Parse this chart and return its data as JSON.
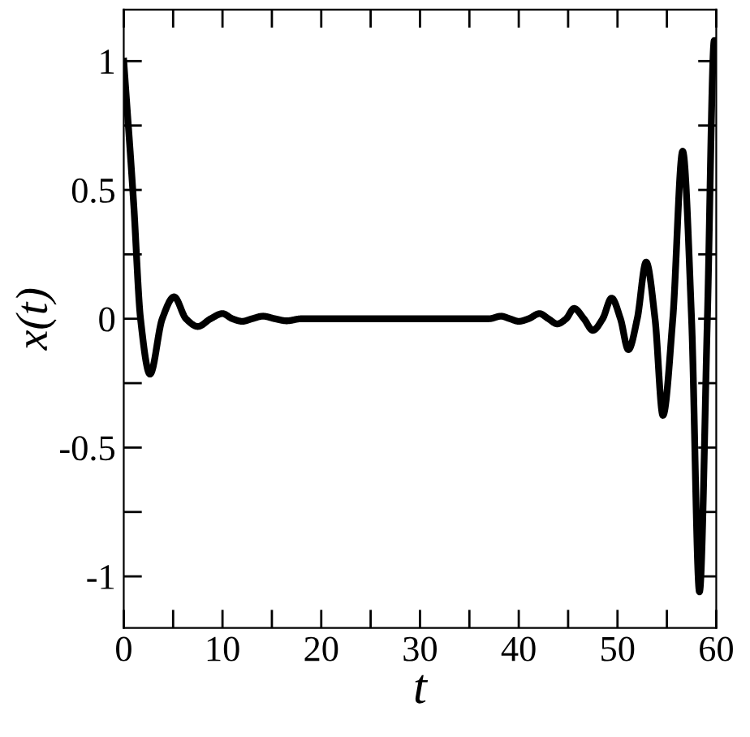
{
  "chart_data": {
    "type": "line",
    "xlabel": "t",
    "ylabel": "x(t)",
    "x": [
      0,
      1,
      1.7,
      2.66,
      3.9,
      5.1,
      6.3,
      7.5,
      8.8,
      10,
      11,
      12,
      13,
      14.1,
      15.3,
      16.5,
      18,
      22,
      26,
      30,
      34,
      37,
      38.2,
      39.1,
      40,
      41,
      42.1,
      43,
      43.9,
      44.8,
      45.6,
      46.6,
      47.5,
      48.5,
      49.4,
      50.3,
      51.1,
      52,
      52.9,
      53.8,
      54.6,
      55.6,
      56.6,
      57.5,
      58.3,
      59.1,
      59.8,
      60
    ],
    "series": [
      {
        "color": "#000000",
        "values": [
          1.0,
          0.45,
          0.0,
          -0.215,
          0,
          0.085,
          0,
          -0.03,
          0,
          0.02,
          0,
          -0.01,
          0,
          0.01,
          0,
          -0.008,
          0,
          0,
          0,
          0,
          0,
          0,
          0.01,
          0,
          -0.01,
          0,
          0.02,
          0,
          -0.02,
          0,
          0.04,
          0,
          -0.045,
          0,
          0.08,
          0,
          -0.12,
          0,
          0.22,
          0,
          -0.375,
          0,
          0.65,
          0,
          -1.06,
          0,
          1.08,
          1.08
        ]
      }
    ],
    "xlim": [
      0,
      60
    ],
    "ylim": [
      -1.2,
      1.2
    ],
    "xticks": [
      0,
      {
        "value": 5,
        "label": null
      },
      10,
      {
        "value": 15,
        "label": null
      },
      20,
      {
        "value": 25,
        "label": null
      },
      30,
      {
        "value": 35,
        "label": null
      },
      40,
      {
        "value": 45,
        "label": null
      },
      50,
      {
        "value": 55,
        "label": null
      },
      60
    ],
    "yticks": [
      -1,
      {
        "value": -0.75,
        "label": null
      },
      -0.5,
      {
        "value": -0.25,
        "label": null
      },
      0,
      {
        "value": 0.25,
        "label": null
      },
      0.5,
      {
        "value": 0.75,
        "label": null
      },
      1
    ],
    "marker": "none",
    "line_style": "solid",
    "grid": false,
    "legend": false
  }
}
